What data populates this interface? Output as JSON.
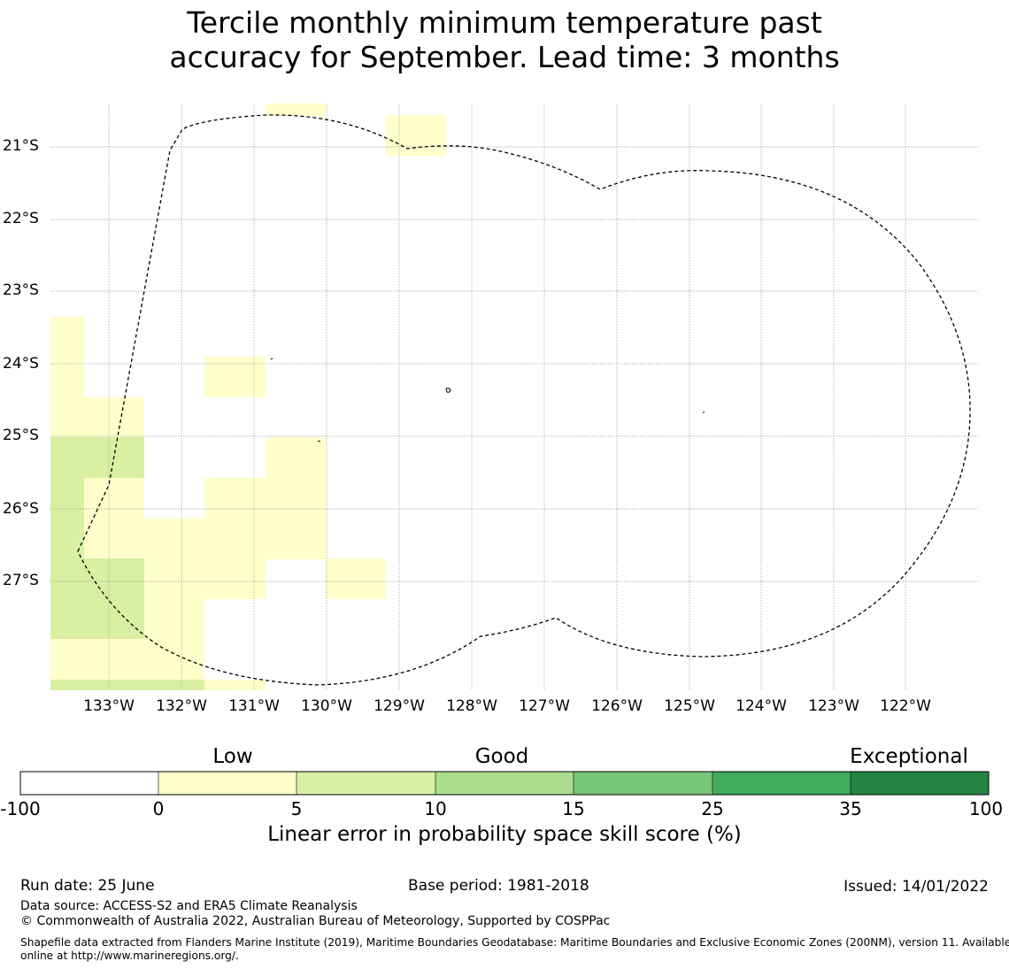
{
  "title_line1": "Tercile monthly minimum temperature past",
  "title_line2": "accuracy for September. Lead time: 3 months",
  "lat_labels": [
    "21°S",
    "22°S",
    "23°S",
    "24°S",
    "25°S",
    "26°S",
    "27°S"
  ],
  "lon_labels": [
    "133°W",
    "132°W",
    "131°W",
    "130°W",
    "129°W",
    "128°W",
    "127°W",
    "126°W",
    "125°W",
    "124°W",
    "123°W",
    "122°W"
  ],
  "colorbar": {
    "category_labels": [
      "Low",
      "Good",
      "Exceptional"
    ],
    "ticks": [
      "-100",
      "0",
      "5",
      "10",
      "15",
      "25",
      "35",
      "100"
    ],
    "colors": [
      "#ffffff",
      "#ffffcc",
      "#d9f0a3",
      "#addd8e",
      "#78c679",
      "#41ab5d",
      "#238443"
    ],
    "title": "Linear error in probability space skill score (%)"
  },
  "map_data": {
    "cell_colors": {
      "c1": "#ffffcc",
      "c2": "#d9f0a3"
    },
    "note": ""
  },
  "footer": {
    "run_date": "Run date: 25 June",
    "base_period": "Base period: 1981-2018",
    "issued": "Issued: 14/01/2022",
    "data_source": "Data source: ACCESS-S2 and ERA5 Climate Reanalysis",
    "copyright": "© Commonwealth of Australia 2022, Australian Bureau of Meteorology, Supported by COSPPac",
    "shapefile_line1": "Shapefile data extracted from Flanders Marine Institute (2019), Maritime Boundaries Geodatabase: Maritime Boundaries and Exclusive Economic Zones (200NM), version 11. Available",
    "shapefile_line2": "online at http://www.marineregions.org/."
  }
}
